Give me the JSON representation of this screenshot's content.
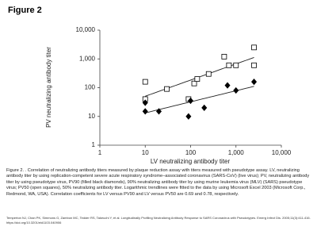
{
  "header": {
    "title": "Figure 2"
  },
  "chart_data": {
    "type": "scatter",
    "xlabel": "LV neutralizing antibody titer",
    "ylabel": "PV neutralizing antibody titer",
    "xlim": [
      1,
      10000
    ],
    "ylim": [
      1,
      10000
    ],
    "log_x": true,
    "log_y": true,
    "trendline": "power",
    "xticks": [
      1,
      10,
      100,
      {
        "value": 1000,
        "label": "1,000"
      },
      {
        "value": 10000,
        "label": "10,000"
      }
    ],
    "yticks": [
      1,
      10,
      100,
      {
        "value": 1000,
        "label": "1,000"
      },
      {
        "value": 10000,
        "label": "10,000"
      }
    ],
    "series": [
      {
        "marker": "square",
        "filled": false,
        "color": "#000000",
        "x": [
          10,
          10,
          30,
          90,
          120,
          140,
          250,
          550,
          700,
          1000,
          2500,
          2500
        ],
        "values": [
          160,
          40,
          90,
          40,
          140,
          200,
          300,
          1200,
          600,
          600,
          2500,
          600
        ]
      },
      {
        "marker": "diamond",
        "filled": true,
        "color": "#000000",
        "x": [
          10,
          10,
          20,
          90,
          100,
          200,
          650,
          1000,
          2500
        ],
        "values": [
          30,
          15,
          15,
          10,
          35,
          20,
          120,
          80,
          160
        ]
      }
    ]
  },
  "document": {
    "caption": "Figure 2. . Correlation of neutralizing antibody titers measured by plaque reduction assay with titers measured with pseudotype assay. LV, neutralizing antibody titer by using replication-competent severe acute respiratory syndrome–associated coronavirus (SARS-CoV) (live virus); PV, neutralizing antibody titer by using pseudotype virus, PV90 (filled black diamonds), 90% neutralizing antibody titer by using murine leukemia virus (MLV) (SARS) pseudotype virus; PV50 (open squares), 50% neutralizing antibody titer. Logarithmic trendlines were fitted to the data by using Microsoft Excel 2003 (Microsoft Corp., Redmond, WA, USA). Correlation coefficients for LV versus PV90 and LV versus PV50 are 0.69 and 0.78, respectively.",
    "citation": "Temperton NJ, Chan PK, Simmons G, Zambon MC, Tedder RS, Takeuchi Y, et al. Longitudinally Profiling Neutralizing Antibody Response to SARS Coronavirus with Pseudotypes. Emerg Infect Dis. 2005;11(3):411-416. https://doi.org/10.3201/eid1103.040906"
  }
}
